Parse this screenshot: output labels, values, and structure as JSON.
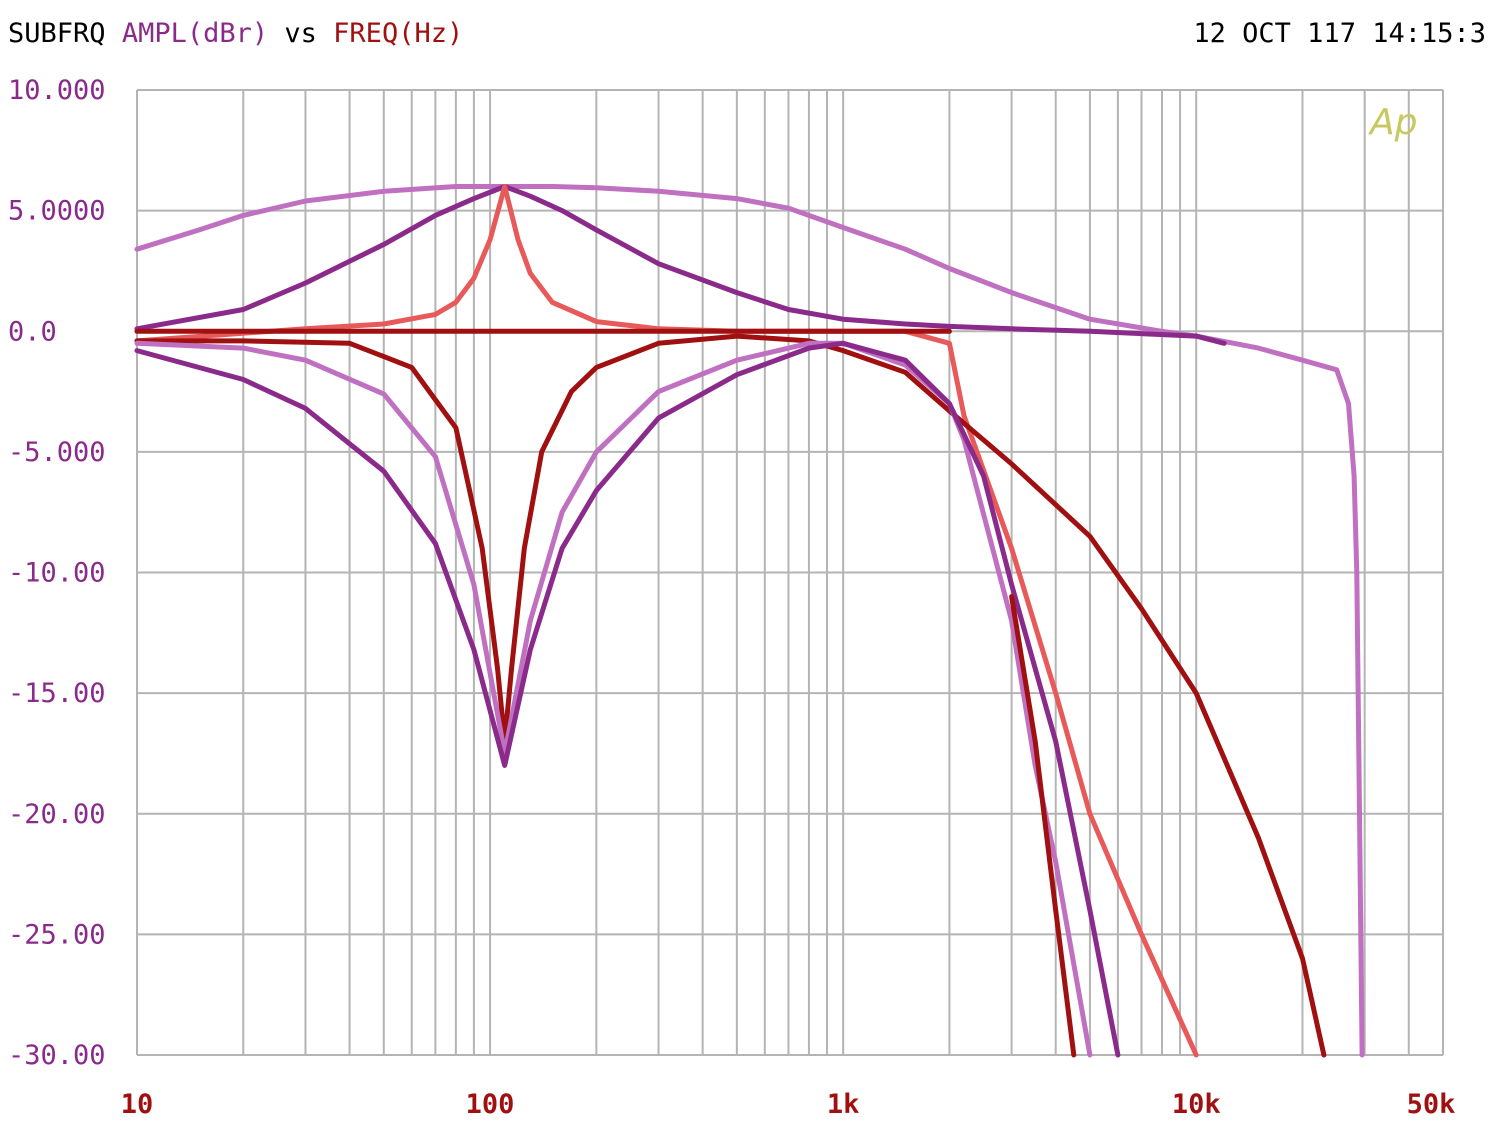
{
  "header": {
    "label_subfrq": "SUBFRQ",
    "label_ampl": "AMPL(dBr)",
    "label_vs": "vs",
    "label_freq": "FREQ(Hz)",
    "timestamp": "12 OCT 117 14:15:3",
    "logo": "Ap"
  },
  "chart_data": {
    "type": "line",
    "title": "SUBFRQ AMPL(dBr) vs FREQ(Hz)",
    "xlabel": "FREQ(Hz)",
    "ylabel": "AMPL(dBr)",
    "xscale": "log",
    "xlim": [
      10,
      50000
    ],
    "ylim": [
      -30,
      10
    ],
    "grid": true,
    "xticks": [
      {
        "value": 10,
        "label": "10"
      },
      {
        "value": 100,
        "label": "100"
      },
      {
        "value": 1000,
        "label": "1k"
      },
      {
        "value": 10000,
        "label": "10k"
      },
      {
        "value": 50000,
        "label": "50k"
      }
    ],
    "yticks": [
      {
        "value": 10,
        "label": "10.000"
      },
      {
        "value": 5,
        "label": "5.0000"
      },
      {
        "value": 0,
        "label": "0.0"
      },
      {
        "value": -5,
        "label": "-5.000"
      },
      {
        "value": -10,
        "label": "-10.00"
      },
      {
        "value": -15,
        "label": "-15.00"
      },
      {
        "value": -20,
        "label": "-20.00"
      },
      {
        "value": -25,
        "label": "-25.00"
      },
      {
        "value": -30,
        "label": "-30.00"
      }
    ],
    "series": [
      {
        "color": "#c070c0",
        "x": [
          10,
          15,
          20,
          30,
          50,
          80,
          110,
          150,
          200,
          300,
          500,
          700,
          1000,
          1500,
          2000,
          3000,
          5000,
          8000,
          10000,
          15000,
          20000,
          25000,
          27000,
          28000,
          28500,
          29000,
          29500
        ],
        "y": [
          3.4,
          4.2,
          4.8,
          5.4,
          5.8,
          6.0,
          6.0,
          6.0,
          5.95,
          5.8,
          5.5,
          5.1,
          4.3,
          3.4,
          2.6,
          1.6,
          0.5,
          0.0,
          -0.2,
          -0.7,
          -1.2,
          -1.6,
          -3.0,
          -6.0,
          -10.0,
          -20.0,
          -30.0
        ]
      },
      {
        "color": "#8a2a8a",
        "x": [
          10,
          20,
          30,
          50,
          70,
          90,
          110,
          130,
          160,
          200,
          300,
          500,
          700,
          1000,
          1500,
          2000,
          3000,
          5000,
          10000,
          12000
        ],
        "y": [
          0.1,
          0.9,
          2.0,
          3.6,
          4.8,
          5.5,
          6.0,
          5.6,
          5.0,
          4.2,
          2.8,
          1.6,
          0.9,
          0.5,
          0.3,
          0.2,
          0.1,
          0.0,
          -0.2,
          -0.5
        ]
      },
      {
        "color": "#e85a5a",
        "x": [
          10,
          30,
          50,
          70,
          80,
          90,
          100,
          110,
          120,
          130,
          150,
          200,
          300,
          500,
          800,
          1000,
          1500,
          2000,
          2200,
          3000,
          4000,
          5000,
          7000,
          10000
        ],
        "y": [
          -0.4,
          0.1,
          0.3,
          0.7,
          1.2,
          2.2,
          3.8,
          6.0,
          3.8,
          2.4,
          1.2,
          0.4,
          0.1,
          0.0,
          0.0,
          0.0,
          0.0,
          -0.5,
          -3.5,
          -9.0,
          -15.0,
          -20.0,
          -25.0,
          -30.0
        ]
      },
      {
        "color": "#a01010",
        "x": [
          10,
          1000,
          1500,
          2000
        ],
        "y": [
          0.0,
          0.0,
          0.0,
          0.0
        ]
      },
      {
        "color": "#a01010",
        "x": [
          10,
          20,
          40,
          60,
          80,
          95,
          105,
          110,
          115,
          125,
          140,
          170,
          200,
          300,
          500,
          800,
          1000,
          1500,
          2000,
          3000,
          5000,
          7000,
          10000,
          15000,
          20000,
          23000
        ],
        "y": [
          -0.4,
          -0.4,
          -0.5,
          -1.5,
          -4.0,
          -9.0,
          -14.0,
          -17.0,
          -14.0,
          -9.0,
          -5.0,
          -2.5,
          -1.5,
          -0.5,
          -0.2,
          -0.4,
          -0.8,
          -1.7,
          -3.3,
          -5.5,
          -8.5,
          -11.5,
          -15.0,
          -21.0,
          -26.0,
          -30.0
        ]
      },
      {
        "color": "#c070c0",
        "x": [
          10,
          20,
          30,
          50,
          70,
          90,
          110,
          130,
          160,
          200,
          300,
          500,
          800,
          1000,
          1500,
          2000,
          2200,
          3000,
          3500,
          4000,
          5000
        ],
        "y": [
          -0.5,
          -0.7,
          -1.2,
          -2.6,
          -5.2,
          -10.5,
          -17.5,
          -12.0,
          -7.5,
          -5.0,
          -2.5,
          -1.2,
          -0.5,
          -0.5,
          -1.4,
          -3.0,
          -4.5,
          -12.0,
          -18.0,
          -22.0,
          -30.0
        ]
      },
      {
        "color": "#8a2a8a",
        "x": [
          10,
          20,
          30,
          50,
          70,
          90,
          110,
          130,
          160,
          200,
          300,
          500,
          800,
          1000,
          1500,
          2000,
          2500,
          3000,
          4000,
          5000,
          6000
        ],
        "y": [
          -0.8,
          -2.0,
          -3.2,
          -5.8,
          -8.8,
          -13.2,
          -18.0,
          -13.2,
          -9.0,
          -6.6,
          -3.6,
          -1.8,
          -0.7,
          -0.5,
          -1.2,
          -3.0,
          -6.0,
          -10.5,
          -17.0,
          -24.0,
          -30.0
        ]
      },
      {
        "color": "#a01010",
        "x": [
          3000,
          3500,
          4000,
          4500
        ],
        "y": [
          -11.0,
          -17.0,
          -24.0,
          -30.0
        ]
      }
    ]
  }
}
